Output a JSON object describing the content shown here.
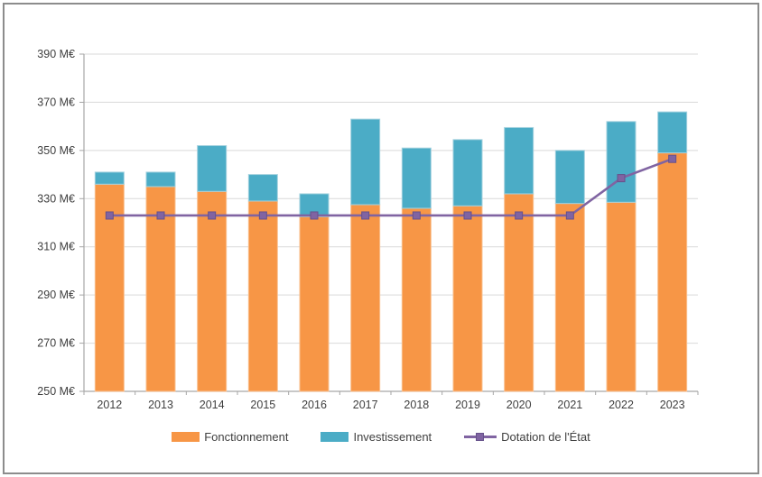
{
  "chart_data": {
    "type": "bar",
    "subtype": "stacked-bars-with-line-overlay",
    "title": "",
    "xlabel": "",
    "ylabel": "",
    "categories": [
      "2012",
      "2013",
      "2014",
      "2015",
      "2016",
      "2017",
      "2018",
      "2019",
      "2020",
      "2021",
      "2022",
      "2023"
    ],
    "series": [
      {
        "name": "Fonctionnement",
        "type": "bar",
        "color": "#F79646",
        "border_color": "#FAC08F",
        "values": [
          336,
          335,
          333,
          329,
          322.5,
          327.5,
          326,
          327,
          332,
          328,
          328.5,
          349
        ]
      },
      {
        "name": "Investissement",
        "type": "bar",
        "color": "#4BACC6",
        "border_color": "#A2D1DE",
        "values": [
          5,
          6,
          19,
          11,
          9.5,
          35.5,
          25,
          27.5,
          27.5,
          22,
          33.5,
          17
        ]
      },
      {
        "name": "Dotation de l'État",
        "type": "line",
        "color": "#8064A2",
        "marker": "square",
        "marker_border_color": "#66518B",
        "values": [
          323,
          323,
          323,
          323,
          323,
          323,
          323,
          323,
          323,
          323,
          338.5,
          346.5
        ]
      }
    ],
    "stack_totals": [
      341,
      341,
      352,
      340,
      332,
      363,
      351,
      354.5,
      359.5,
      350,
      362,
      366
    ],
    "ylim": [
      250,
      390
    ],
    "ytick_step": 20,
    "ytick_labels": [
      "250 M€",
      "270 M€",
      "290 M€",
      "310 M€",
      "330 M€",
      "350 M€",
      "370 M€",
      "390 M€"
    ],
    "grid": true,
    "gridline_color": "#D9D9D9",
    "axis_color": "#A6A6A6",
    "text_color": "#3F3F3F",
    "legend_position": "bottom",
    "unit": "M€"
  }
}
